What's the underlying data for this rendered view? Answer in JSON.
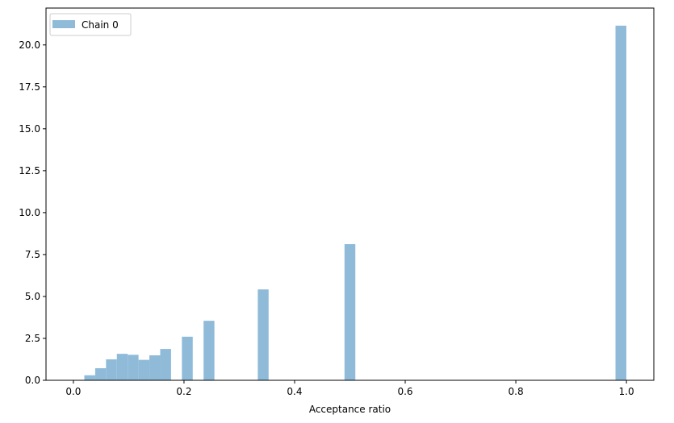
{
  "chart_data": {
    "type": "bar",
    "title": "",
    "xlabel": "Acceptance ratio",
    "ylabel": "",
    "xlim": [
      -0.0495,
      1.0495
    ],
    "ylim": [
      0,
      22.2
    ],
    "xticks": [
      0.0,
      0.2,
      0.4,
      0.6,
      0.8,
      1.0
    ],
    "xtick_labels": [
      "0.0",
      "0.2",
      "0.4",
      "0.6",
      "0.8",
      "1.0"
    ],
    "yticks": [
      0.0,
      2.5,
      5.0,
      7.5,
      10.0,
      12.5,
      15.0,
      17.5,
      20.0
    ],
    "ytick_labels": [
      "0.0",
      "2.5",
      "5.0",
      "7.5",
      "10.0",
      "12.5",
      "15.0",
      "17.5",
      "20.0"
    ],
    "grid": false,
    "legend_position": "top-left",
    "bar_color": "#8fbbd9",
    "series": [
      {
        "name": "Chain 0",
        "bins": [
          {
            "x0": 0.0198,
            "x1": 0.0394,
            "value": 0.3
          },
          {
            "x0": 0.0394,
            "x1": 0.059,
            "value": 0.72
          },
          {
            "x0": 0.059,
            "x1": 0.0786,
            "value": 1.25
          },
          {
            "x0": 0.0786,
            "x1": 0.0982,
            "value": 1.58
          },
          {
            "x0": 0.0982,
            "x1": 0.1178,
            "value": 1.52
          },
          {
            "x0": 0.1178,
            "x1": 0.1374,
            "value": 1.22
          },
          {
            "x0": 0.1374,
            "x1": 0.157,
            "value": 1.49
          },
          {
            "x0": 0.157,
            "x1": 0.1766,
            "value": 1.87
          },
          {
            "x0": 0.1962,
            "x1": 0.2158,
            "value": 2.6
          },
          {
            "x0": 0.2354,
            "x1": 0.255,
            "value": 3.55
          },
          {
            "x0": 0.3334,
            "x1": 0.353,
            "value": 5.42
          },
          {
            "x0": 0.4902,
            "x1": 0.5098,
            "value": 8.12
          },
          {
            "x0": 0.9802,
            "x1": 0.9998,
            "value": 21.15
          }
        ]
      }
    ]
  }
}
